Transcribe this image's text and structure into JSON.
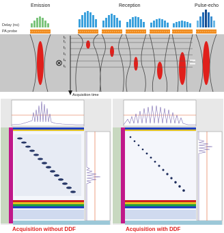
{
  "header": {
    "emission": "Emission",
    "reception": "Reception",
    "pulse_echo": "Pulse-echo"
  },
  "labels": {
    "delay": "Delay (ns)",
    "pa_probe": "PA probe",
    "acquisition_time": "Acquisition time",
    "times": [
      "t₀",
      "t₁",
      "t₂",
      "t₃",
      "t₄",
      "t₅"
    ]
  },
  "symbols": {
    "combine": "⊗",
    "equals": "="
  },
  "colors": {
    "emission_bars": "#7cc47c",
    "reception_bars": "#3aa0dc",
    "pulse_echo_bars": "#1a5fa8",
    "probe": "#f08c1e",
    "focal_spot": "#e0201c",
    "medium": "#c9c9c9",
    "caption": "#e02020"
  },
  "screens": [
    {
      "caption": "Acquisition without DDF"
    },
    {
      "caption": "Acquisition with DDF"
    }
  ]
}
